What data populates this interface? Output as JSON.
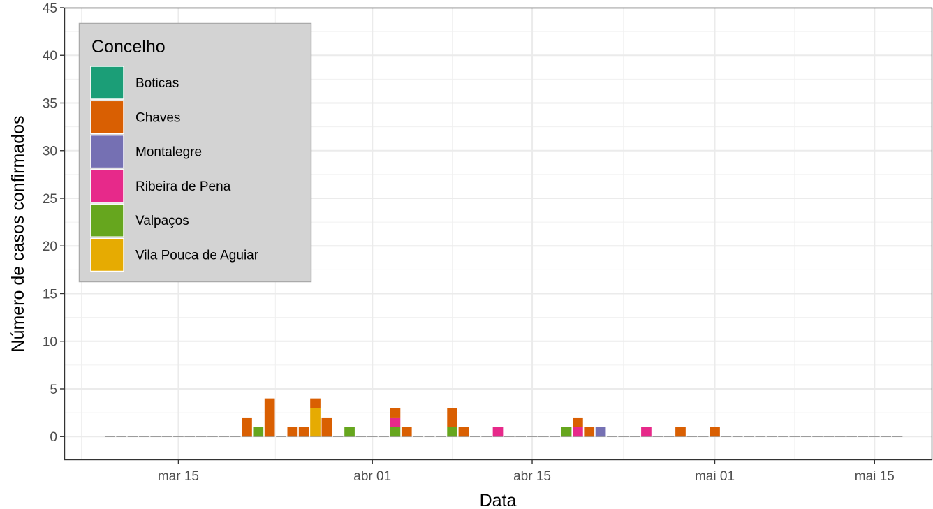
{
  "chart_data": {
    "type": "bar",
    "stacked": true,
    "xlabel": "Data",
    "ylabel": "Número de casos confirmados",
    "ylim": [
      -2.4,
      45
    ],
    "y_ticks": [
      0,
      5,
      10,
      15,
      20,
      25,
      30,
      35,
      40,
      45
    ],
    "x_ticks": [
      {
        "date": "2020-03-15",
        "label": "mar 15"
      },
      {
        "date": "2020-04-01",
        "label": "abr 01"
      },
      {
        "date": "2020-04-15",
        "label": "abr 15"
      },
      {
        "date": "2020-05-01",
        "label": "mai 01"
      },
      {
        "date": "2020-05-15",
        "label": "mai 15"
      }
    ],
    "x_range": [
      "2020-03-05",
      "2020-05-20"
    ],
    "x_data_range": [
      "2020-03-09",
      "2020-05-17"
    ],
    "grid": true,
    "legend": {
      "title": "Concelho",
      "position": "top-left",
      "background": "#d3d3d3"
    },
    "series": [
      {
        "name": "Boticas",
        "color": "#1b9e77",
        "points": []
      },
      {
        "name": "Chaves",
        "color": "#d95f02",
        "points": [
          {
            "date": "2020-03-21",
            "value": 2
          },
          {
            "date": "2020-03-23",
            "value": 4
          },
          {
            "date": "2020-03-25",
            "value": 1
          },
          {
            "date": "2020-03-26",
            "value": 1
          },
          {
            "date": "2020-03-27",
            "value": 1
          },
          {
            "date": "2020-03-28",
            "value": 2
          },
          {
            "date": "2020-04-03",
            "value": 1
          },
          {
            "date": "2020-04-04",
            "value": 1
          },
          {
            "date": "2020-04-08",
            "value": 2
          },
          {
            "date": "2020-04-09",
            "value": 1
          },
          {
            "date": "2020-04-19",
            "value": 1
          },
          {
            "date": "2020-04-20",
            "value": 1
          },
          {
            "date": "2020-04-28",
            "value": 1
          },
          {
            "date": "2020-05-01",
            "value": 1
          }
        ]
      },
      {
        "name": "Montalegre",
        "color": "#7570b3",
        "points": [
          {
            "date": "2020-04-21",
            "value": 1
          }
        ]
      },
      {
        "name": "Ribeira de Pena",
        "color": "#e7298a",
        "points": [
          {
            "date": "2020-04-03",
            "value": 1
          },
          {
            "date": "2020-04-12",
            "value": 1
          },
          {
            "date": "2020-04-19",
            "value": 1
          },
          {
            "date": "2020-04-25",
            "value": 1
          }
        ]
      },
      {
        "name": "Valpaços",
        "color": "#66a61e",
        "points": [
          {
            "date": "2020-03-22",
            "value": 1
          },
          {
            "date": "2020-03-30",
            "value": 1
          },
          {
            "date": "2020-04-03",
            "value": 1
          },
          {
            "date": "2020-04-08",
            "value": 1
          },
          {
            "date": "2020-04-18",
            "value": 1
          }
        ]
      },
      {
        "name": "Vila Pouca de Aguiar",
        "color": "#e6ab02",
        "points": [
          {
            "date": "2020-03-27",
            "value": 3
          }
        ]
      }
    ]
  }
}
